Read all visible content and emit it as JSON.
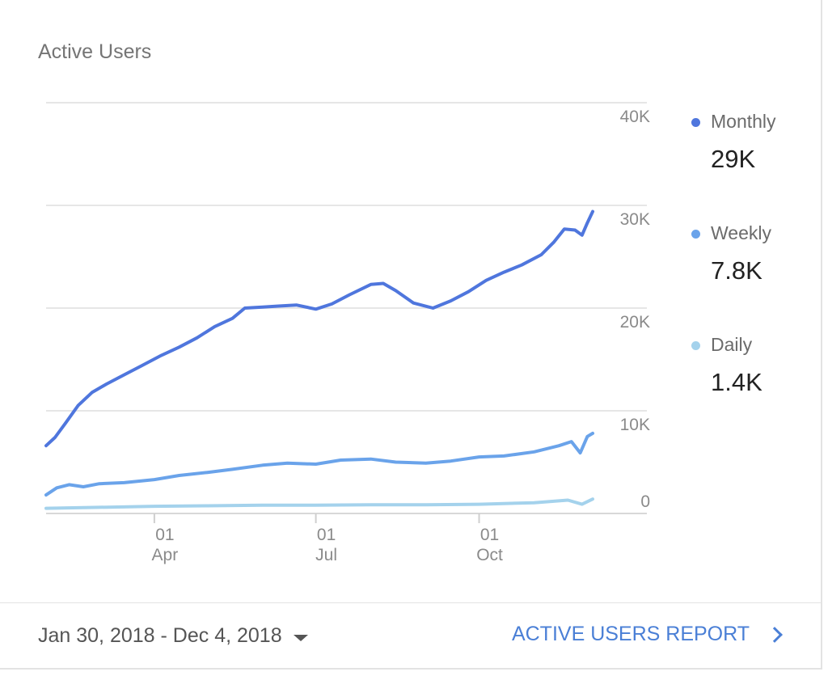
{
  "card": {
    "title": "Active Users"
  },
  "legend": [
    {
      "name": "Monthly",
      "value": "29K",
      "color": "#4f76dd"
    },
    {
      "name": "Weekly",
      "value": "7.8K",
      "color": "#6aa3ea"
    },
    {
      "name": "Daily",
      "value": "1.4K",
      "color": "#a4d2ec"
    }
  ],
  "footer": {
    "date_range": "Jan 30, 2018 - Dec 4, 2018",
    "report_link": "ACTIVE USERS REPORT"
  },
  "icons": {
    "dropdown": "caret-down-icon",
    "report_link": "chevron-right-icon"
  },
  "chart_data": {
    "type": "line",
    "title": "Active Users",
    "xlabel": "",
    "ylabel": "",
    "ylim": [
      0,
      40000
    ],
    "y_ticks": [
      0,
      10000,
      20000,
      30000,
      40000
    ],
    "y_tick_labels": [
      "0",
      "10K",
      "20K",
      "30K",
      "40K"
    ],
    "y_axis_position": "right",
    "x_range": [
      "2018-01-30",
      "2018-12-04"
    ],
    "x_ticks": [
      {
        "date": "2018-04-01",
        "day": "01",
        "month": "Apr"
      },
      {
        "date": "2018-07-01",
        "day": "01",
        "month": "Jul"
      },
      {
        "date": "2018-10-01",
        "day": "01",
        "month": "Oct"
      }
    ],
    "grid": true,
    "legend_position": "right",
    "series": [
      {
        "name": "Monthly",
        "color": "#4f76dd",
        "points": [
          [
            "2018-01-30",
            6600
          ],
          [
            "2018-02-04",
            7400
          ],
          [
            "2018-02-10",
            8800
          ],
          [
            "2018-02-17",
            10500
          ],
          [
            "2018-02-25",
            11800
          ],
          [
            "2018-03-05",
            12600
          ],
          [
            "2018-03-15",
            13500
          ],
          [
            "2018-03-25",
            14400
          ],
          [
            "2018-04-05",
            15400
          ],
          [
            "2018-04-15",
            16200
          ],
          [
            "2018-04-25",
            17100
          ],
          [
            "2018-05-05",
            18200
          ],
          [
            "2018-05-15",
            19000
          ],
          [
            "2018-05-22",
            20000
          ],
          [
            "2018-06-01",
            20100
          ],
          [
            "2018-06-10",
            20200
          ],
          [
            "2018-06-20",
            20300
          ],
          [
            "2018-07-01",
            19900
          ],
          [
            "2018-07-10",
            20400
          ],
          [
            "2018-07-20",
            21300
          ],
          [
            "2018-08-01",
            22300
          ],
          [
            "2018-08-08",
            22400
          ],
          [
            "2018-08-15",
            21700
          ],
          [
            "2018-08-25",
            20500
          ],
          [
            "2018-09-05",
            20000
          ],
          [
            "2018-09-15",
            20700
          ],
          [
            "2018-09-25",
            21600
          ],
          [
            "2018-10-05",
            22700
          ],
          [
            "2018-10-15",
            23500
          ],
          [
            "2018-10-25",
            24200
          ],
          [
            "2018-11-05",
            25200
          ],
          [
            "2018-11-12",
            26400
          ],
          [
            "2018-11-18",
            27700
          ],
          [
            "2018-11-24",
            27600
          ],
          [
            "2018-11-28",
            27100
          ],
          [
            "2018-12-01",
            28300
          ],
          [
            "2018-12-04",
            29400
          ]
        ]
      },
      {
        "name": "Weekly",
        "color": "#6aa3ea",
        "points": [
          [
            "2018-01-30",
            1800
          ],
          [
            "2018-02-05",
            2500
          ],
          [
            "2018-02-12",
            2800
          ],
          [
            "2018-02-20",
            2600
          ],
          [
            "2018-03-01",
            2900
          ],
          [
            "2018-03-15",
            3000
          ],
          [
            "2018-04-01",
            3300
          ],
          [
            "2018-04-15",
            3700
          ],
          [
            "2018-05-01",
            4000
          ],
          [
            "2018-05-15",
            4300
          ],
          [
            "2018-06-01",
            4700
          ],
          [
            "2018-06-15",
            4900
          ],
          [
            "2018-07-01",
            4800
          ],
          [
            "2018-07-15",
            5200
          ],
          [
            "2018-08-01",
            5300
          ],
          [
            "2018-08-15",
            5000
          ],
          [
            "2018-09-01",
            4900
          ],
          [
            "2018-09-15",
            5100
          ],
          [
            "2018-10-01",
            5500
          ],
          [
            "2018-10-15",
            5600
          ],
          [
            "2018-11-01",
            6000
          ],
          [
            "2018-11-15",
            6600
          ],
          [
            "2018-11-22",
            7000
          ],
          [
            "2018-11-27",
            5900
          ],
          [
            "2018-12-01",
            7500
          ],
          [
            "2018-12-04",
            7800
          ]
        ]
      },
      {
        "name": "Daily",
        "color": "#a4d2ec",
        "points": [
          [
            "2018-01-30",
            500
          ],
          [
            "2018-03-01",
            600
          ],
          [
            "2018-04-01",
            700
          ],
          [
            "2018-05-01",
            750
          ],
          [
            "2018-06-01",
            800
          ],
          [
            "2018-07-01",
            800
          ],
          [
            "2018-08-01",
            850
          ],
          [
            "2018-09-01",
            850
          ],
          [
            "2018-10-01",
            900
          ],
          [
            "2018-11-01",
            1050
          ],
          [
            "2018-11-20",
            1300
          ],
          [
            "2018-11-28",
            900
          ],
          [
            "2018-12-04",
            1400
          ]
        ]
      }
    ]
  }
}
